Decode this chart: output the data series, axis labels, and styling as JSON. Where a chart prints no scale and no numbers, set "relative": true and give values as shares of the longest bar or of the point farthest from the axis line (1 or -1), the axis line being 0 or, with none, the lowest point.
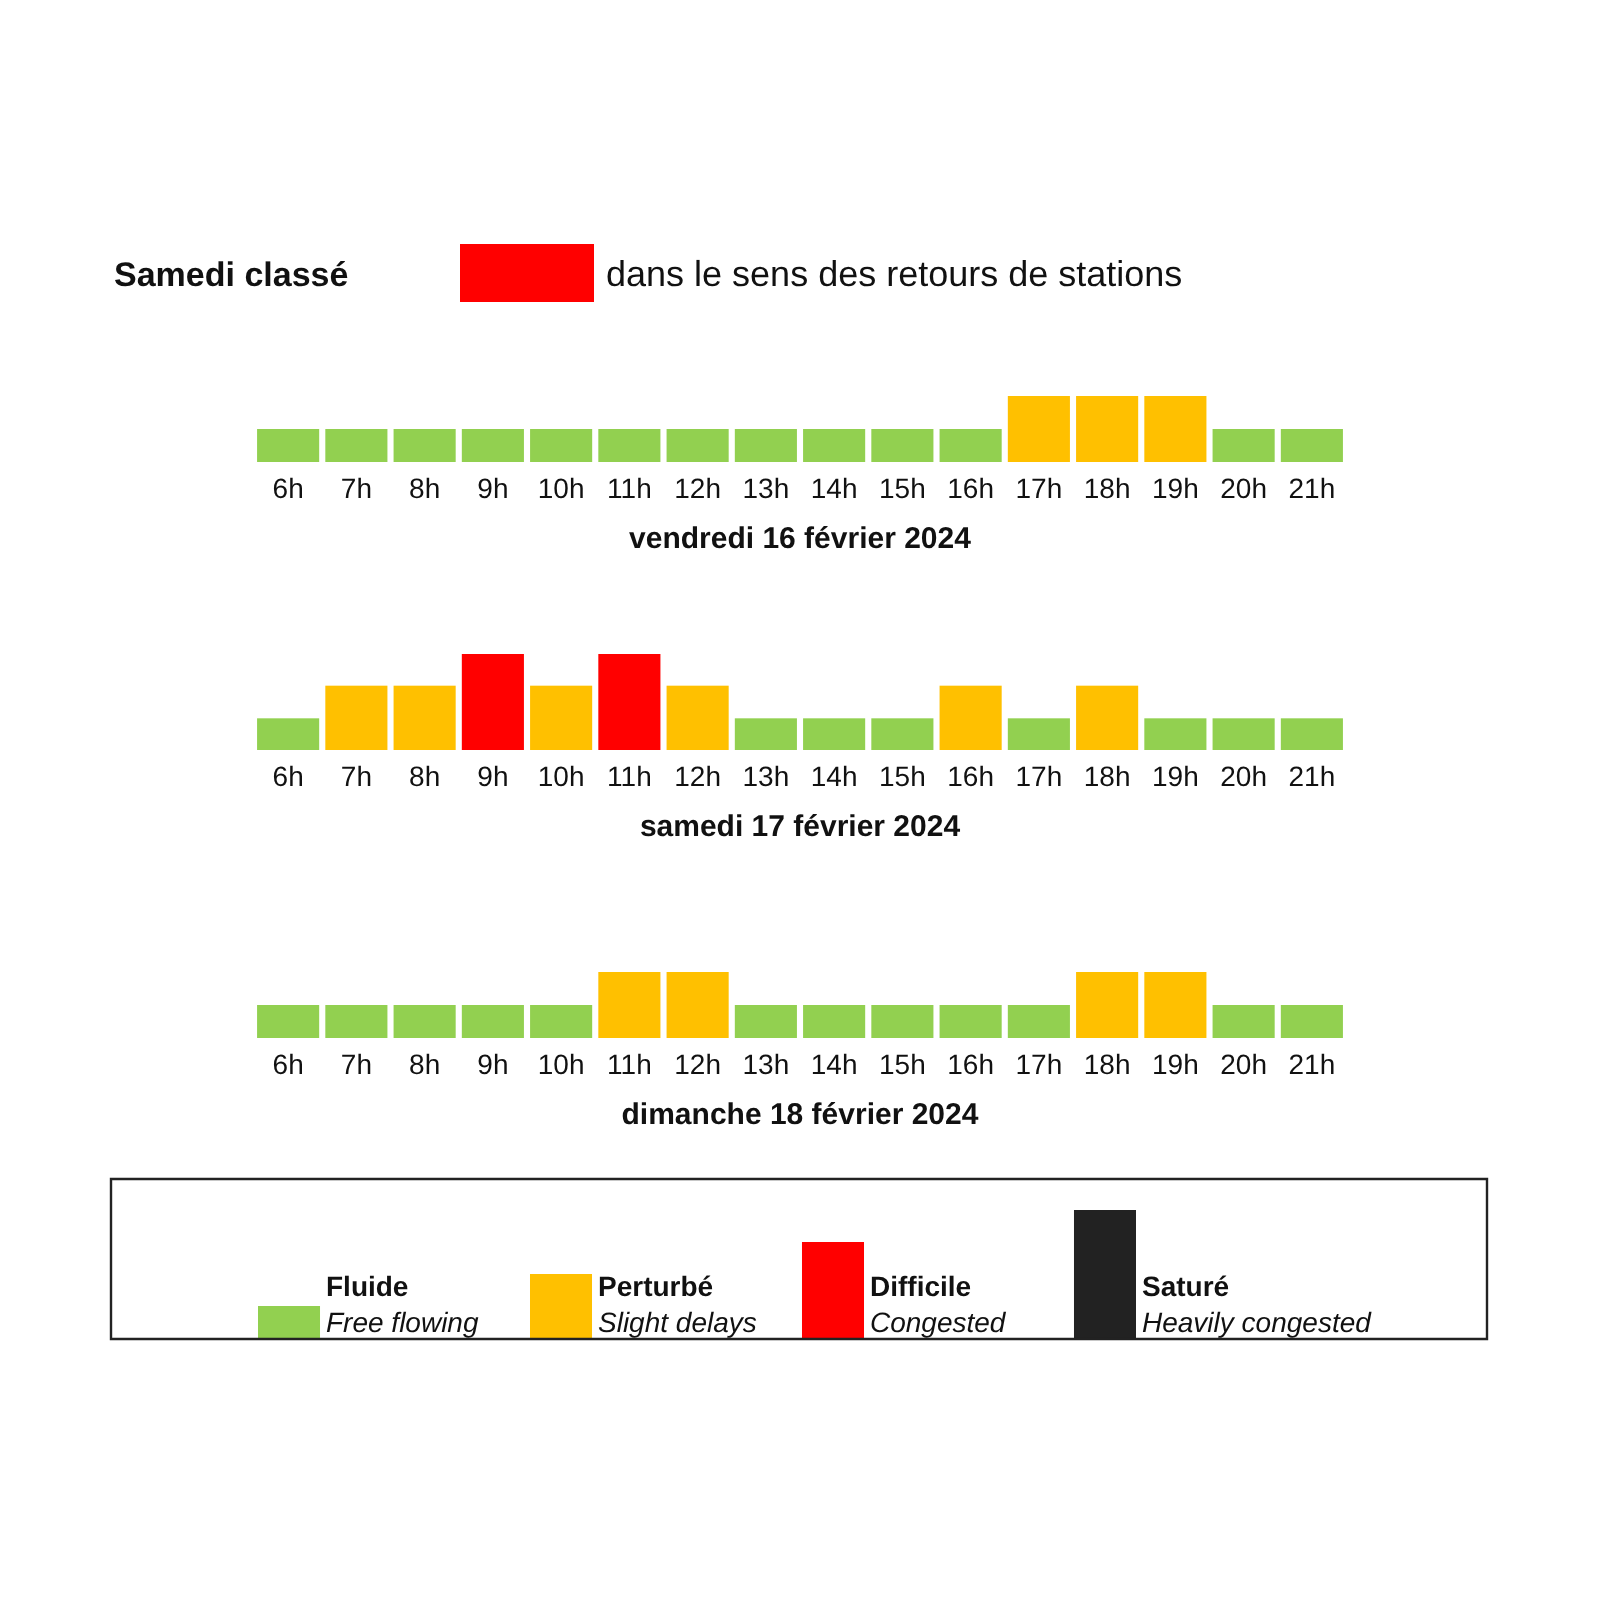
{
  "chart_data": [
    {
      "type": "bar",
      "title": "Samedi classé",
      "subtitle": "dans le sens des retours de stations",
      "categories": [
        "6h",
        "7h",
        "8h",
        "9h",
        "10h",
        "11h",
        "12h",
        "13h",
        "14h",
        "15h",
        "16h",
        "17h",
        "18h",
        "19h",
        "20h",
        "21h"
      ],
      "values": [
        0.5,
        0.5,
        0.5,
        0.5,
        0.5,
        0.5,
        0.5,
        0.5,
        0.5,
        0.5,
        0.5,
        1,
        1,
        1,
        0.5,
        0.5
      ],
      "colors": [
        "#92d050",
        "#92d050",
        "#92d050",
        "#92d050",
        "#92d050",
        "#92d050",
        "#92d050",
        "#92d050",
        "#92d050",
        "#92d050",
        "#92d050",
        "#ffc000",
        "#ffc000",
        "#ffc000",
        "#92d050",
        "#92d050"
      ],
      "relative": true,
      "xlabel": "vendredi 16 février 2024"
    },
    {
      "type": "bar",
      "categories": [
        "6h",
        "7h",
        "8h",
        "9h",
        "10h",
        "11h",
        "12h",
        "13h",
        "14h",
        "15h",
        "16h",
        "17h",
        "18h",
        "19h",
        "20h",
        "21h"
      ],
      "values": [
        0.33,
        0.67,
        0.67,
        1,
        0.67,
        1,
        0.67,
        0.33,
        0.33,
        0.33,
        0.67,
        0.33,
        0.67,
        0.33,
        0.33,
        0.33
      ],
      "colors": [
        "#92d050",
        "#ffc000",
        "#ffc000",
        "#ff0000",
        "#ffc000",
        "#ff0000",
        "#ffc000",
        "#92d050",
        "#92d050",
        "#92d050",
        "#ffc000",
        "#92d050",
        "#ffc000",
        "#92d050",
        "#92d050",
        "#92d050"
      ],
      "relative": true,
      "xlabel": "samedi 17 février 2024"
    },
    {
      "type": "bar",
      "categories": [
        "6h",
        "7h",
        "8h",
        "9h",
        "10h",
        "11h",
        "12h",
        "13h",
        "14h",
        "15h",
        "16h",
        "17h",
        "18h",
        "19h",
        "20h",
        "21h"
      ],
      "values": [
        0.5,
        0.5,
        0.5,
        0.5,
        0.5,
        1,
        1,
        0.5,
        0.5,
        0.5,
        0.5,
        0.5,
        1,
        1,
        0.5,
        0.5
      ],
      "colors": [
        "#92d050",
        "#92d050",
        "#92d050",
        "#92d050",
        "#92d050",
        "#ffc000",
        "#ffc000",
        "#92d050",
        "#92d050",
        "#92d050",
        "#92d050",
        "#92d050",
        "#ffc000",
        "#ffc000",
        "#92d050",
        "#92d050"
      ],
      "relative": true,
      "xlabel": "dimanche 18 février 2024"
    },
    {
      "type": "bar",
      "categories": [
        "Fluide",
        "Perturbé",
        "Difficile",
        "Saturé"
      ],
      "values": [
        0.25,
        0.5,
        0.75,
        1
      ],
      "colors": [
        "#92d050",
        "#ffc000",
        "#ff0000",
        "#222222"
      ],
      "relative": true,
      "annotations": [
        "Free flowing",
        "Slight delays",
        "Congested",
        "Heavily congested"
      ]
    }
  ]
}
